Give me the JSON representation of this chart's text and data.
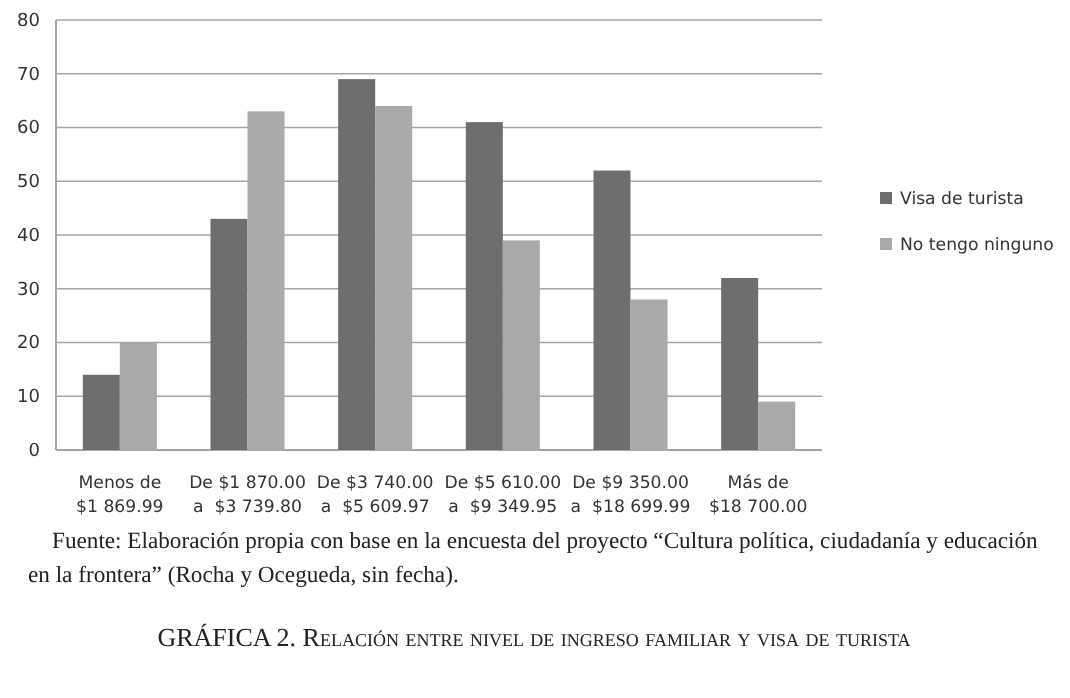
{
  "chart_data": {
    "type": "bar",
    "title": "GRÁFICA 2. Relación entre nivel de ingreso familiar y visa de turista",
    "categories": [
      "Menos de\n$1 869.99",
      "De $1 870.00\na  $3 739.80",
      "De $3 740.00\na  $5 609.97",
      "De $5 610.00\na  $9 349.95",
      "De $9 350.00\na  $18 699.99",
      "Más de\n$18 700.00"
    ],
    "series": [
      {
        "name": "Visa de turista",
        "color": "#6e6e70",
        "values": [
          14,
          43,
          69,
          61,
          52,
          32
        ]
      },
      {
        "name": "No tengo ninguno",
        "color": "#a9a9ab",
        "values": [
          20,
          63,
          64,
          39,
          28,
          9
        ]
      }
    ],
    "ylim": [
      0,
      80
    ],
    "yticks": [
      0,
      10,
      20,
      30,
      40,
      50,
      60,
      70,
      80
    ],
    "grid": "y",
    "legend": "right",
    "annotations": [
      "Fuente: Elaboración propia con base en la encuesta del proyecto “Cultura política, ciudadanía y educación en la frontera” (Rocha y Ocegueda, sin fecha)."
    ]
  }
}
